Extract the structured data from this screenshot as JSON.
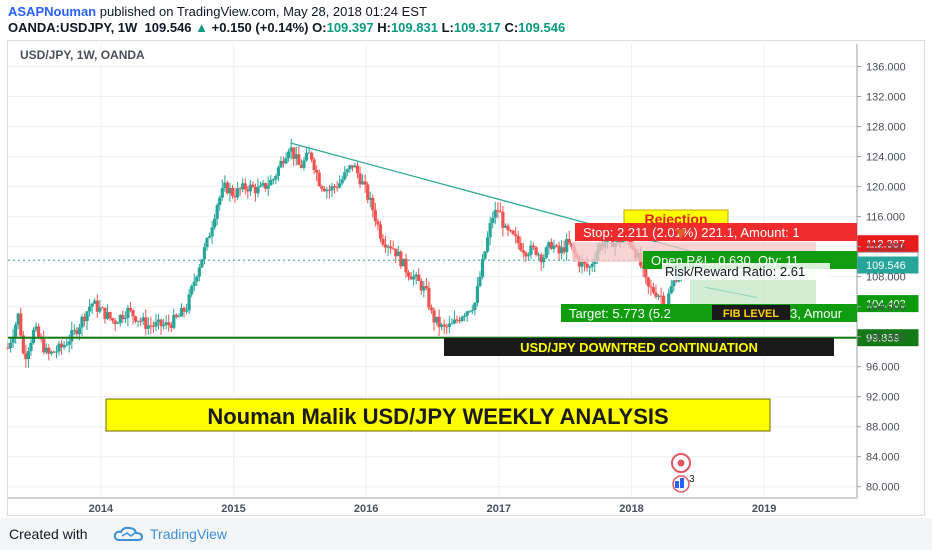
{
  "header": {
    "author": "ASAPNouman",
    "published_text": "published on TradingView.com, May 28, 2018 01:24 EST",
    "symbol": "OANDA:USDJPY, 1W",
    "last": "109.546",
    "change_arrow": "▲",
    "change": "+0.150 (+0.14%)",
    "o_label": "O:",
    "o_value": "109.397",
    "h_label": "H:",
    "h_value": "109.831",
    "l_label": "L:",
    "l_value": "109.317",
    "c_label": "C:",
    "c_value": "109.546"
  },
  "chart_label": "USD/JPY, 1W, OANDA",
  "annotations": {
    "rejection": "Rejection",
    "stop": "Stop: 2.211 (2.01%) 221.1, Amount: 1",
    "open_pl": "Open P&L: 0.630, Qty: 11",
    "risk_reward": "Risk/Reward Ratio: 2.61",
    "target": "Target: 5.773 (5.2",
    "target_tail": "3, Amour",
    "fib": "FIB LEVEL",
    "downtrend": "USD/JPY DOWNTRED CONTINUATION",
    "title_box": "Nouman Malik USD/JPY WEEKLY ANALYSIS"
  },
  "price_tags": {
    "stop_level": "112.387",
    "current_line": "110.176",
    "last_price": "109.546",
    "target_level": "104.403",
    "support_level": "99.859"
  },
  "footer": {
    "created_with": "Created with",
    "brand": "TradingView"
  },
  "colors": {
    "up": "#26a69a",
    "down": "#ef5350",
    "trendline": "#2ea897",
    "support": "#157a15",
    "stop_tag": "#e91c1c",
    "target_tag": "#0a9a0a",
    "yellow": "#ffff00"
  },
  "icons": [
    "alert-icon",
    "ideas-icon",
    "tradingview-cloud-icon"
  ],
  "ideas_count": "3",
  "chart_data": {
    "type": "candlestick",
    "title": "USD/JPY, 1W, OANDA",
    "y_ticks": [
      "136.000",
      "132.000",
      "128.000",
      "124.000",
      "120.000",
      "116.000",
      "112.000",
      "108.000",
      "104.000",
      "100.000",
      "96.000",
      "92.000",
      "88.000",
      "84.000",
      "80.000"
    ],
    "ylim": [
      78.5,
      139
    ],
    "x_ticks": [
      "2014",
      "2015",
      "2016",
      "2017",
      "2018",
      "2019"
    ],
    "xlim": [
      2013.3,
      2019.7
    ],
    "keypoints": [
      [
        2013.3,
        98.5
      ],
      [
        2013.38,
        103.0
      ],
      [
        2013.42,
        97.0
      ],
      [
        2013.5,
        101.0
      ],
      [
        2013.6,
        97.5
      ],
      [
        2013.7,
        98.5
      ],
      [
        2013.8,
        100.5
      ],
      [
        2013.93,
        104.5
      ],
      [
        2014.0,
        103.5
      ],
      [
        2014.1,
        102.0
      ],
      [
        2014.2,
        103.5
      ],
      [
        2014.35,
        101.5
      ],
      [
        2014.5,
        101.5
      ],
      [
        2014.58,
        102.5
      ],
      [
        2014.65,
        104.0
      ],
      [
        2014.72,
        108.5
      ],
      [
        2014.8,
        112.5
      ],
      [
        2014.88,
        118.0
      ],
      [
        2014.94,
        120.0
      ],
      [
        2015.0,
        119.0
      ],
      [
        2015.1,
        120.0
      ],
      [
        2015.2,
        119.5
      ],
      [
        2015.3,
        121.0
      ],
      [
        2015.38,
        124.0
      ],
      [
        2015.42,
        125.5
      ],
      [
        2015.5,
        122.5
      ],
      [
        2015.58,
        124.5
      ],
      [
        2015.65,
        120.5
      ],
      [
        2015.72,
        119.5
      ],
      [
        2015.8,
        120.5
      ],
      [
        2015.9,
        123.0
      ],
      [
        2015.97,
        120.5
      ],
      [
        2016.05,
        117.0
      ],
      [
        2016.12,
        113.0
      ],
      [
        2016.2,
        112.0
      ],
      [
        2016.3,
        109.0
      ],
      [
        2016.38,
        107.5
      ],
      [
        2016.45,
        106.0
      ],
      [
        2016.5,
        102.5
      ],
      [
        2016.58,
        101.0
      ],
      [
        2016.65,
        101.5
      ],
      [
        2016.72,
        103.0
      ],
      [
        2016.82,
        104.5
      ],
      [
        2016.88,
        110.0
      ],
      [
        2016.95,
        116.0
      ],
      [
        2017.0,
        117.0
      ],
      [
        2017.05,
        114.0
      ],
      [
        2017.12,
        113.0
      ],
      [
        2017.2,
        111.5
      ],
      [
        2017.28,
        111.5
      ],
      [
        2017.33,
        110.5
      ],
      [
        2017.4,
        112.5
      ],
      [
        2017.45,
        111.0
      ],
      [
        2017.52,
        112.5
      ],
      [
        2017.6,
        110.0
      ],
      [
        2017.68,
        109.0
      ],
      [
        2017.75,
        112.0
      ],
      [
        2017.82,
        113.0
      ],
      [
        2017.88,
        112.5
      ],
      [
        2017.94,
        113.0
      ],
      [
        2018.0,
        112.5
      ],
      [
        2018.06,
        110.0
      ],
      [
        2018.12,
        106.5
      ],
      [
        2018.18,
        106.0
      ],
      [
        2018.22,
        105.5
      ],
      [
        2018.26,
        104.5
      ],
      [
        2018.3,
        106.5
      ],
      [
        2018.36,
        109.0
      ],
      [
        2018.4,
        109.5
      ]
    ],
    "trendline": {
      "from": [
        2015.43,
        125.8
      ],
      "to": [
        2018.55,
        110.9
      ]
    },
    "support_line": 99.859,
    "current_price_line": 110.176,
    "stop_level": 112.387,
    "target_level": 104.403,
    "entry_price": 109.546
  }
}
